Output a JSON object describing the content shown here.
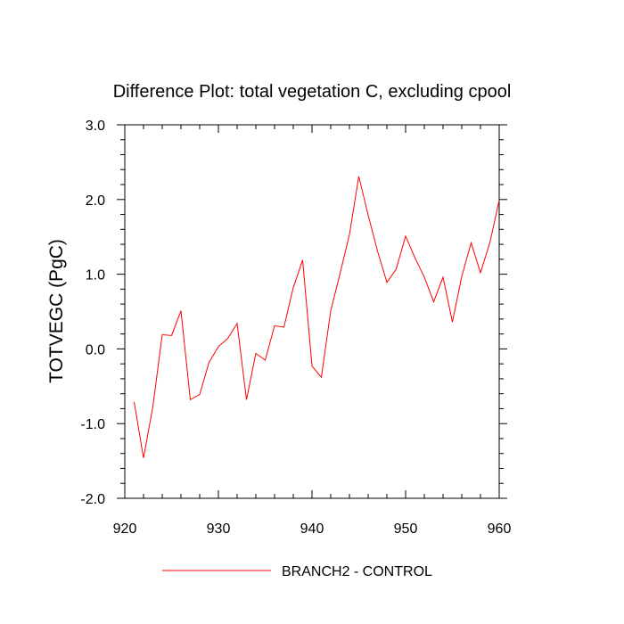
{
  "chart_data": {
    "type": "line",
    "title": "Difference Plot: total vegetation C, excluding cpool",
    "ylabel": "TOTVEGC  (PgC)",
    "xlabel": "",
    "xlim": [
      920,
      960
    ],
    "ylim": [
      -2.0,
      3.0
    ],
    "x_ticks": [
      920,
      930,
      940,
      950,
      960
    ],
    "x_tick_labels": [
      "920",
      "930",
      "940",
      "950",
      "960"
    ],
    "y_ticks": [
      -2.0,
      -1.0,
      0.0,
      1.0,
      2.0,
      3.0
    ],
    "y_tick_labels": [
      "-2.0",
      "-1.0",
      "0.0",
      "1.0",
      "2.0",
      "3.0"
    ],
    "grid": false,
    "legend_position": "bottom-center",
    "series": [
      {
        "name": "BRANCH2 - CONTROL",
        "color": "#ff0000",
        "x": [
          921,
          922,
          923,
          924,
          925,
          926,
          927,
          928,
          929,
          930,
          931,
          932,
          933,
          934,
          935,
          936,
          937,
          938,
          939,
          940,
          941,
          942,
          943,
          944,
          945,
          946,
          947,
          948,
          949,
          950,
          951,
          952,
          953,
          954,
          955,
          956,
          957,
          958,
          959,
          960
        ],
        "y": [
          -0.71,
          -1.46,
          -0.77,
          0.19,
          0.18,
          0.51,
          -0.68,
          -0.61,
          -0.18,
          0.03,
          0.14,
          0.34,
          -0.68,
          -0.06,
          -0.15,
          0.31,
          0.29,
          0.82,
          1.19,
          -0.23,
          -0.38,
          0.51,
          1.01,
          1.53,
          2.31,
          1.79,
          1.31,
          0.89,
          1.07,
          1.51,
          1.22,
          0.96,
          0.63,
          0.96,
          0.36,
          0.97,
          1.42,
          1.02,
          1.42,
          1.99
        ]
      }
    ]
  }
}
